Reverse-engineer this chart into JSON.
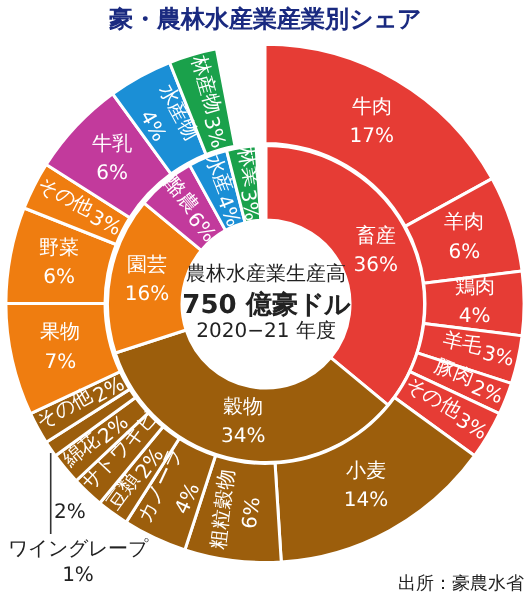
{
  "chart_data": [
    {
      "type": "donut",
      "title": "豪・農林水産業産業別シェア",
      "categories": [
        "牛肉",
        "羊肉",
        "鶏肉",
        "羊毛",
        "豚肉",
        "その他",
        "小麦",
        "粗粒穀物",
        "カノーラ",
        "豆類",
        "サトウキビ",
        "綿花",
        "ワイングレープ",
        "その他",
        "果物",
        "野菜",
        "その他",
        "牛乳",
        "水産物",
        "林産物"
      ],
      "values": [
        17,
        6,
        4,
        3,
        2,
        3,
        14,
        6,
        4,
        2,
        2,
        2,
        1,
        2,
        7,
        6,
        3,
        6,
        4,
        3
      ],
      "value_labels": [
        "17%",
        "6%",
        "4%",
        "3%",
        "2%",
        "3%",
        "14%",
        "6%",
        "4%",
        "2%",
        "2%",
        "2%",
        "1%",
        "2%",
        "7%",
        "6%",
        "3%",
        "6%",
        "4%",
        "3%"
      ],
      "colors": [
        "#e63c35",
        "#e63c35",
        "#e63c35",
        "#e63c35",
        "#e63c35",
        "#e63c35",
        "#9c5e0c",
        "#9c5e0c",
        "#9c5e0c",
        "#9c5e0c",
        "#9c5e0c",
        "#9c5e0c",
        "#9c5e0c",
        "#9c5e0c",
        "#ef7d10",
        "#ef7d10",
        "#ef7d10",
        "#c23a9c",
        "#1b8fd6",
        "#1aa14b"
      ],
      "annotations": [
        "出所：豪農水省"
      ]
    },
    {
      "type": "donut",
      "categories": [
        "畜産",
        "穀物",
        "園芸",
        "酪農",
        "水産",
        "林業"
      ],
      "values": [
        36,
        34,
        16,
        6,
        4,
        3
      ],
      "value_labels": [
        "36%",
        "34%",
        "16%",
        "6%",
        "4%",
        "3%"
      ],
      "colors": [
        "#e63c35",
        "#9c5e0c",
        "#ef7d10",
        "#c23a9c",
        "#1b8fd6",
        "#1aa14b"
      ],
      "annotations": [
        "農林水産業生産高",
        "750 億豪ドル",
        "2020−21 年度"
      ]
    }
  ]
}
